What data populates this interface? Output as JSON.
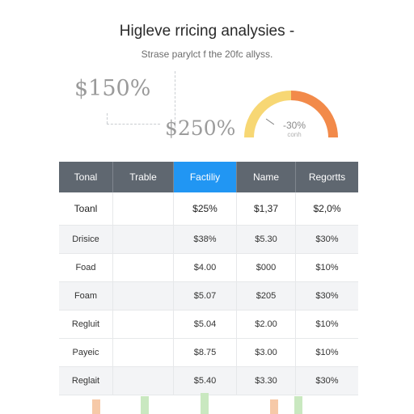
{
  "header": {
    "title": "Higleve rricing analysies -",
    "subtitle": "Strase parylct f the 20fc allyss."
  },
  "stats": {
    "primary": "$150%",
    "secondary": "$250%"
  },
  "gauge": {
    "value": "-30%",
    "sublabel": "conh",
    "colors": {
      "left": "#f7d774",
      "right": "#f28a4a"
    }
  },
  "table": {
    "columns": [
      "Tonal",
      "Trable",
      "Factiliy",
      "Name",
      "Regortts"
    ],
    "active_column": 2,
    "rows": [
      {
        "label": "Toanl",
        "cells": [
          "",
          "$25%",
          "$1,37",
          "$2,0%"
        ]
      },
      {
        "label": "Drisice",
        "cells": [
          "",
          "$38%",
          "$5.30",
          "$30%"
        ]
      },
      {
        "label": "Foad",
        "cells": [
          "",
          "$4.00",
          "$000",
          "$10%"
        ]
      },
      {
        "label": "Foam",
        "cells": [
          "",
          "$5.07",
          "$205",
          "$30%"
        ]
      },
      {
        "label": "Regluit",
        "cells": [
          "",
          "$5.04",
          "$2.00",
          "$10%"
        ]
      },
      {
        "label": "Payeic",
        "cells": [
          "",
          "$8.75",
          "$3.00",
          "$10%"
        ]
      },
      {
        "label": "Reglait",
        "cells": [
          "",
          "$5.40",
          "$3.30",
          "$30%"
        ]
      }
    ]
  },
  "footer_bars": {
    "colors": [
      "#f6c9a8",
      "#c9e8c0",
      "#c9e8c0",
      "#f6c9a8",
      "#c9e8c0"
    ]
  }
}
